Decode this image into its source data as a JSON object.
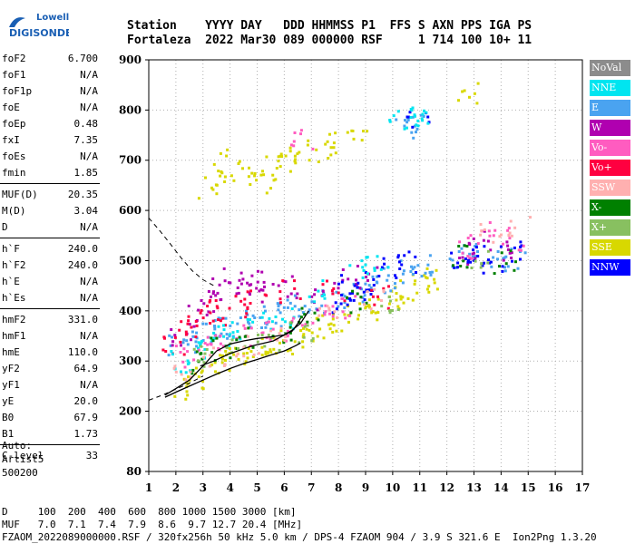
{
  "logo": {
    "line1": "Lowell",
    "line2": "DIGISONDE"
  },
  "header": {
    "line1": "Station    YYYY DAY   DDD HHMMSS P1  FFS S AXN PPS IGA PS",
    "line2": "Fortaleza  2022 Mar30 089 000000 RSF     1 714 100 10+ 11"
  },
  "params_groups": [
    [
      [
        "foF2",
        "6.700"
      ],
      [
        "foF1",
        "N/A"
      ],
      [
        "foF1p",
        "N/A"
      ],
      [
        "foE",
        "N/A"
      ],
      [
        "foEp",
        "0.48"
      ],
      [
        "fxI",
        "7.35"
      ],
      [
        "foEs",
        "N/A"
      ],
      [
        "fmin",
        "1.85"
      ]
    ],
    [
      [
        "MUF(D)",
        "20.35"
      ],
      [
        "M(D)",
        "3.04"
      ],
      [
        "D",
        "N/A"
      ]
    ],
    [
      [
        "h`F",
        "240.0"
      ],
      [
        "h`F2",
        "240.0"
      ],
      [
        "h`E",
        "N/A"
      ],
      [
        "h`Es",
        "N/A"
      ]
    ],
    [
      [
        "hmF2",
        "331.0"
      ],
      [
        "hmF1",
        "N/A"
      ],
      [
        "hmE",
        "110.0"
      ],
      [
        "yF2",
        "64.9"
      ],
      [
        "yF1",
        "N/A"
      ],
      [
        "yE",
        "20.0"
      ],
      [
        "B0",
        "67.9"
      ],
      [
        "B1",
        "1.73"
      ]
    ],
    [
      [
        "C-level",
        "33"
      ]
    ]
  ],
  "auto": {
    "line1": "Auto:",
    "line2": "Artist5",
    "line3": "500200"
  },
  "legend": [
    {
      "label": "NoVal",
      "color": "#8c8c8c"
    },
    {
      "label": "NNE",
      "color": "#00e5f0"
    },
    {
      "label": "E",
      "color": "#4aa3f0"
    },
    {
      "label": "W",
      "color": "#b000b0"
    },
    {
      "label": "Vo-",
      "color": "#ff5cc0"
    },
    {
      "label": "Vo+",
      "color": "#ff0040"
    },
    {
      "label": "SSW",
      "color": "#ffb0b0"
    },
    {
      "label": "X-",
      "color": "#008000"
    },
    {
      "label": "X+",
      "color": "#88c060"
    },
    {
      "label": "SSE",
      "color": "#d8d800"
    },
    {
      "label": "NNW",
      "color": "#0000ff"
    }
  ],
  "footer": {
    "line1": "D     100  200  400  600  800 1000 1500 3000 [km]",
    "line2": "MUF   7.0  7.1  7.4  7.9  8.6  9.7 12.7 20.4 [MHz]",
    "line3": "FZAOM_2022089000000.RSF / 320fx256h 50 kHz 5.0 km / DPS-4 FZAOM 904 / 3.9 S 321.6 E  Ion2Png 1.3.20"
  },
  "chart_data": {
    "type": "scatter",
    "xlim": [
      1,
      17
    ],
    "ylim": [
      80,
      900
    ],
    "x_ticks": [
      1,
      2,
      3,
      4,
      5,
      6,
      7,
      8,
      9,
      10,
      11,
      12,
      13,
      14,
      15,
      16,
      17
    ],
    "y_ticks": [
      80,
      200,
      300,
      400,
      500,
      600,
      700,
      800,
      900
    ],
    "grid": "dotted",
    "clusters": [
      {
        "name": "SSE",
        "color": "#d8d800",
        "points": [
          [
            2.2,
            250
          ],
          [
            2.6,
            265
          ],
          [
            3.0,
            280
          ],
          [
            3.5,
            295
          ],
          [
            4.0,
            305
          ],
          [
            4.5,
            318
          ],
          [
            5.0,
            325
          ],
          [
            5.5,
            335
          ],
          [
            6.0,
            340
          ],
          [
            6.5,
            350
          ],
          [
            7.0,
            358
          ],
          [
            7.5,
            370
          ],
          [
            8.0,
            385
          ],
          [
            8.5,
            395
          ],
          [
            9.0,
            405
          ],
          [
            9.5,
            420
          ],
          [
            10.0,
            430
          ],
          [
            10.5,
            445
          ],
          [
            11.0,
            455
          ],
          [
            11.5,
            465
          ],
          [
            3.2,
            650
          ],
          [
            3.6,
            680
          ],
          [
            4.0,
            700
          ],
          [
            4.5,
            670
          ],
          [
            5.2,
            660
          ],
          [
            5.6,
            690
          ],
          [
            6.2,
            700
          ],
          [
            6.6,
            710
          ],
          [
            7.2,
            720
          ],
          [
            7.8,
            735
          ],
          [
            8.6,
            760
          ],
          [
            12.7,
            838
          ]
        ]
      },
      {
        "name": "E",
        "color": "#4aa3f0",
        "points": [
          [
            2.0,
            330
          ],
          [
            2.5,
            340
          ],
          [
            3.0,
            355
          ],
          [
            3.5,
            365
          ],
          [
            4.0,
            370
          ],
          [
            4.5,
            380
          ],
          [
            5.0,
            385
          ],
          [
            5.5,
            395
          ],
          [
            6.0,
            405
          ],
          [
            6.5,
            415
          ],
          [
            7.0,
            420
          ],
          [
            8.0,
            430
          ],
          [
            8.5,
            440
          ],
          [
            9.0,
            450
          ],
          [
            9.5,
            455
          ],
          [
            10.0,
            470
          ],
          [
            10.5,
            480
          ],
          [
            11.0,
            490
          ],
          [
            12.5,
            505
          ],
          [
            13.0,
            520
          ],
          [
            14.0,
            510
          ],
          [
            14.5,
            500
          ],
          [
            10.8,
            775
          ],
          [
            10.5,
            765
          ]
        ]
      },
      {
        "name": "W",
        "color": "#b000b0",
        "points": [
          [
            2.2,
            345
          ],
          [
            2.8,
            390
          ],
          [
            3.2,
            420
          ],
          [
            3.6,
            445
          ],
          [
            4.0,
            470
          ],
          [
            4.6,
            450
          ],
          [
            5.0,
            440
          ],
          [
            5.4,
            460
          ],
          [
            6.0,
            450
          ],
          [
            7.0,
            425
          ],
          [
            8.2,
            470
          ],
          [
            9.0,
            470
          ],
          [
            12.8,
            515
          ],
          [
            13.2,
            540
          ],
          [
            14.2,
            520
          ]
        ]
      },
      {
        "name": "NNW",
        "color": "#0000ff",
        "points": [
          [
            8.0,
            420
          ],
          [
            8.3,
            450
          ],
          [
            8.8,
            440
          ],
          [
            9.3,
            460
          ],
          [
            10.0,
            490
          ],
          [
            10.4,
            500
          ],
          [
            12.4,
            500
          ],
          [
            13.0,
            510
          ],
          [
            13.6,
            495
          ],
          [
            14.3,
            520
          ],
          [
            10.9,
            790
          ]
        ]
      },
      {
        "name": "Vo+",
        "color": "#ff0040",
        "points": [
          [
            1.9,
            330
          ],
          [
            2.3,
            360
          ],
          [
            2.7,
            380
          ],
          [
            3.1,
            400
          ],
          [
            3.5,
            395
          ],
          [
            4.2,
            410
          ],
          [
            5.0,
            420
          ],
          [
            6.2,
            440
          ],
          [
            7.8,
            440
          ],
          [
            9.5,
            430
          ]
        ]
      },
      {
        "name": "NNE",
        "color": "#00e5f0",
        "points": [
          [
            2.1,
            300
          ],
          [
            2.6,
            320
          ],
          [
            3.2,
            340
          ],
          [
            3.8,
            355
          ],
          [
            4.4,
            365
          ],
          [
            5.2,
            375
          ],
          [
            6.0,
            385
          ],
          [
            7.2,
            440
          ],
          [
            8.6,
            480
          ],
          [
            9.4,
            500
          ],
          [
            10.2,
            780
          ],
          [
            10.6,
            800
          ],
          [
            11.0,
            790
          ]
        ]
      },
      {
        "name": "Vo-",
        "color": "#ff5cc0",
        "points": [
          [
            2.4,
            310
          ],
          [
            3.0,
            330
          ],
          [
            3.8,
            340
          ],
          [
            4.8,
            350
          ],
          [
            5.6,
            360
          ],
          [
            6.4,
            370
          ],
          [
            7.4,
            390
          ],
          [
            8.4,
            410
          ],
          [
            12.6,
            530
          ],
          [
            13.4,
            560
          ],
          [
            14.4,
            545
          ],
          [
            6.6,
            745
          ]
        ]
      },
      {
        "name": "X-",
        "color": "#008000",
        "points": [
          [
            2.6,
            300
          ],
          [
            3.6,
            325
          ],
          [
            4.6,
            345
          ],
          [
            5.8,
            360
          ],
          [
            6.8,
            390
          ],
          [
            8.6,
            420
          ],
          [
            12.5,
            510
          ],
          [
            14.1,
            500
          ]
        ]
      },
      {
        "name": "X+",
        "color": "#88c060",
        "points": [
          [
            3.0,
            310
          ],
          [
            4.2,
            330
          ],
          [
            5.4,
            345
          ],
          [
            6.6,
            360
          ],
          [
            9.8,
            420
          ],
          [
            13.2,
            500
          ]
        ]
      },
      {
        "name": "SSW",
        "color": "#ffb0b0",
        "points": [
          [
            2.2,
            280
          ],
          [
            3.4,
            310
          ],
          [
            4.6,
            330
          ],
          [
            5.8,
            345
          ],
          [
            7.6,
            400
          ],
          [
            9.2,
            430
          ],
          [
            13.6,
            560
          ],
          [
            14.6,
            570
          ]
        ]
      }
    ],
    "curves": {
      "trace_upper": [
        [
          1.6,
          232
        ],
        [
          2.0,
          245
        ],
        [
          2.5,
          262
        ],
        [
          3.0,
          290
        ],
        [
          3.5,
          320
        ],
        [
          4.0,
          334
        ],
        [
          4.5,
          340
        ],
        [
          5.0,
          345
        ],
        [
          5.5,
          348
        ],
        [
          6.0,
          352
        ],
        [
          6.3,
          360
        ],
        [
          6.5,
          375
        ],
        [
          6.6,
          385
        ]
      ],
      "trace_lower": [
        [
          1.6,
          228
        ],
        [
          2.0,
          238
        ],
        [
          2.5,
          250
        ],
        [
          3.0,
          262
        ],
        [
          3.5,
          274
        ],
        [
          4.0,
          285
        ],
        [
          4.5,
          295
        ],
        [
          5.0,
          303
        ],
        [
          5.5,
          312
        ],
        [
          6.0,
          320
        ],
        [
          6.4,
          330
        ],
        [
          6.6,
          336
        ]
      ],
      "profile": [
        [
          2.9,
          290
        ],
        [
          3.4,
          300
        ],
        [
          4.0,
          315
        ],
        [
          4.8,
          330
        ],
        [
          5.6,
          340
        ],
        [
          6.0,
          352
        ],
        [
          6.3,
          362
        ],
        [
          6.6,
          375
        ],
        [
          6.9,
          400
        ]
      ],
      "dashed_upper": [
        [
          1.0,
          585
        ],
        [
          1.4,
          560
        ],
        [
          1.8,
          533
        ],
        [
          2.2,
          505
        ],
        [
          2.6,
          480
        ],
        [
          3.0,
          462
        ],
        [
          3.4,
          450
        ]
      ],
      "dashed_lower": [
        [
          1.0,
          222
        ],
        [
          1.5,
          232
        ],
        [
          2.0,
          244
        ],
        [
          2.5,
          256
        ],
        [
          3.0,
          270
        ]
      ]
    }
  }
}
